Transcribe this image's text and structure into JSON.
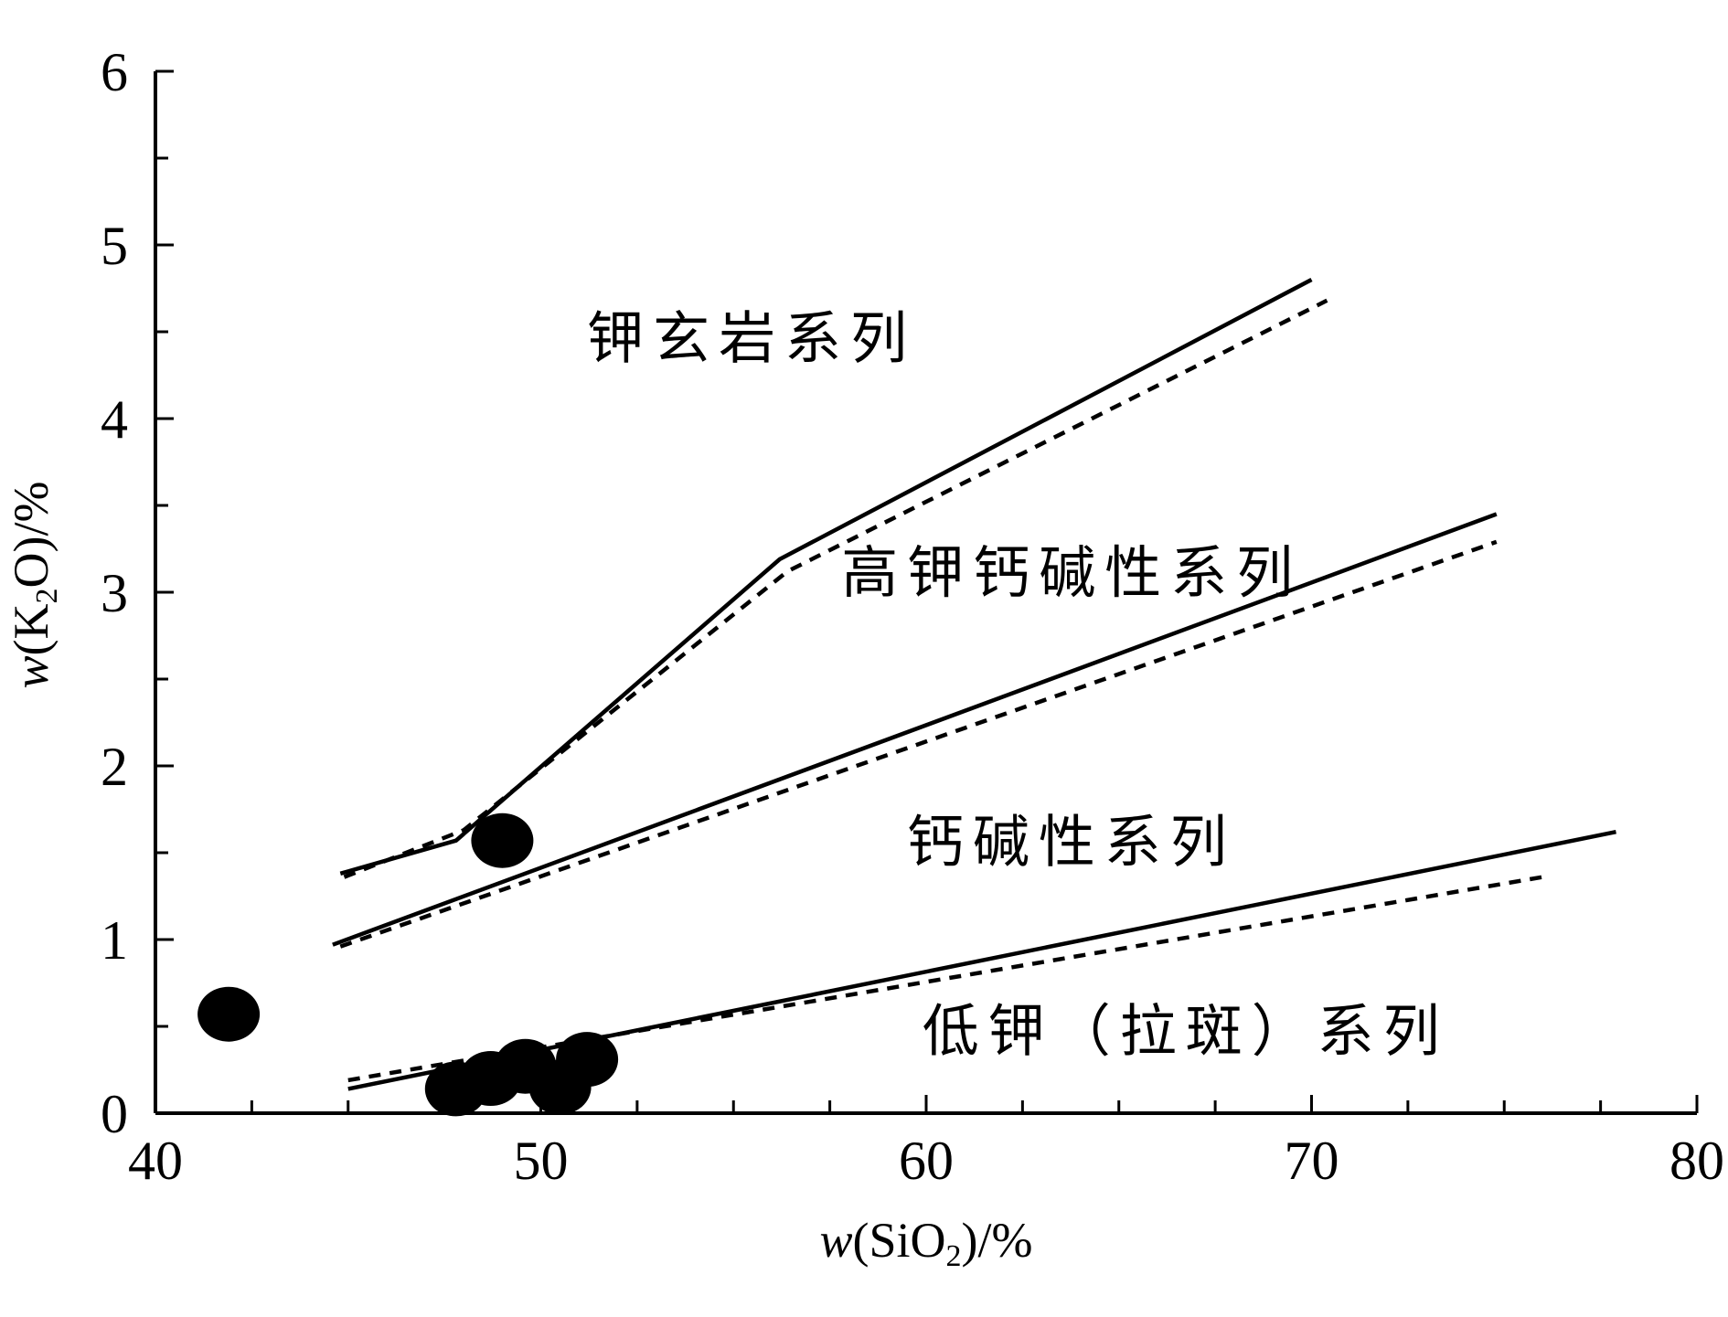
{
  "chart_data": {
    "type": "scatter",
    "xlabel": "w(SiO2)/%",
    "ylabel": "w(K2O)/%",
    "xlim": [
      40,
      80
    ],
    "ylim": [
      0,
      6
    ],
    "x_ticks": [
      40,
      50,
      60,
      70,
      80
    ],
    "y_ticks": [
      0,
      1,
      2,
      3,
      4,
      5,
      6
    ],
    "x_axis_title": {
      "italic": "w",
      "open": "(SiO",
      "sub": "2",
      "close": ")/%"
    },
    "y_axis_title": {
      "italic": "w",
      "open": "(K",
      "sub": "2",
      "close": "O)/%"
    },
    "boundaries": [
      {
        "style": "solid",
        "points": [
          [
            44.8,
            1.38
          ],
          [
            47.8,
            1.57
          ],
          [
            56.2,
            3.19
          ],
          [
            70.0,
            4.8
          ]
        ]
      },
      {
        "style": "dashed",
        "points": [
          [
            44.9,
            1.36
          ],
          [
            48.0,
            1.63
          ],
          [
            56.4,
            3.12
          ],
          [
            70.4,
            4.68
          ]
        ]
      },
      {
        "style": "solid",
        "points": [
          [
            44.6,
            0.97
          ],
          [
            74.8,
            3.45
          ]
        ]
      },
      {
        "style": "dashed",
        "points": [
          [
            44.8,
            0.96
          ],
          [
            74.8,
            3.29
          ]
        ]
      },
      {
        "style": "solid",
        "points": [
          [
            45.0,
            0.14
          ],
          [
            77.9,
            1.62
          ]
        ]
      },
      {
        "style": "dashed",
        "points": [
          [
            45.0,
            0.19
          ],
          [
            76.0,
            1.36
          ]
        ]
      }
    ],
    "region_labels": [
      {
        "text": "钾玄岩系列",
        "x": 51.2,
        "y": 4.35
      },
      {
        "text": "高钾钙碱性系列",
        "x": 57.8,
        "y": 3.0
      },
      {
        "text": "钙碱性系列",
        "x": 59.5,
        "y": 1.45
      },
      {
        "text": "低钾（拉斑）系列",
        "x": 59.9,
        "y": 0.36
      }
    ],
    "points": [
      {
        "x": 41.9,
        "y": 0.57
      },
      {
        "x": 49.0,
        "y": 1.57
      },
      {
        "x": 47.8,
        "y": 0.14
      },
      {
        "x": 48.7,
        "y": 0.2
      },
      {
        "x": 49.6,
        "y": 0.27
      },
      {
        "x": 50.5,
        "y": 0.15
      },
      {
        "x": 51.2,
        "y": 0.31
      }
    ]
  }
}
